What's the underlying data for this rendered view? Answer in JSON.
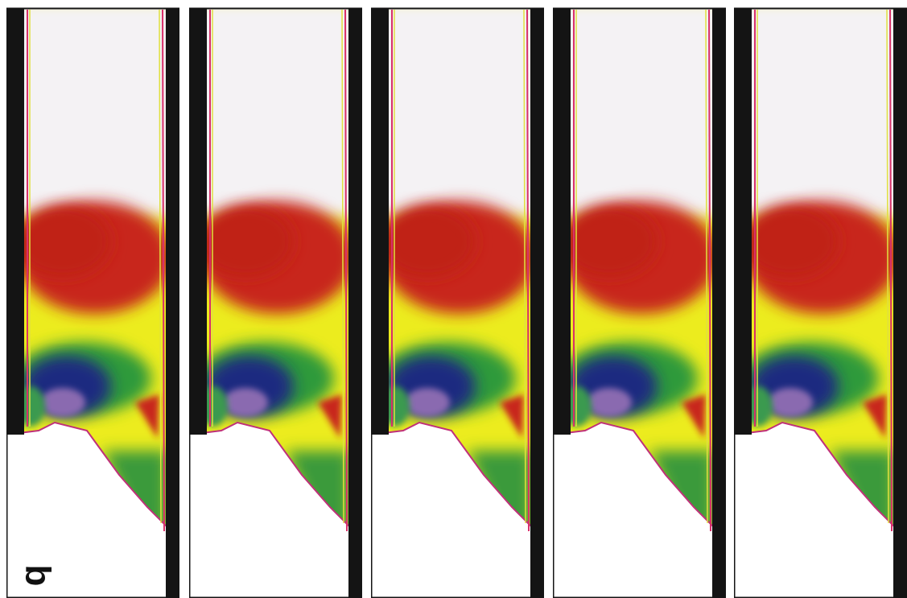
{
  "panel_label": "b"
}
